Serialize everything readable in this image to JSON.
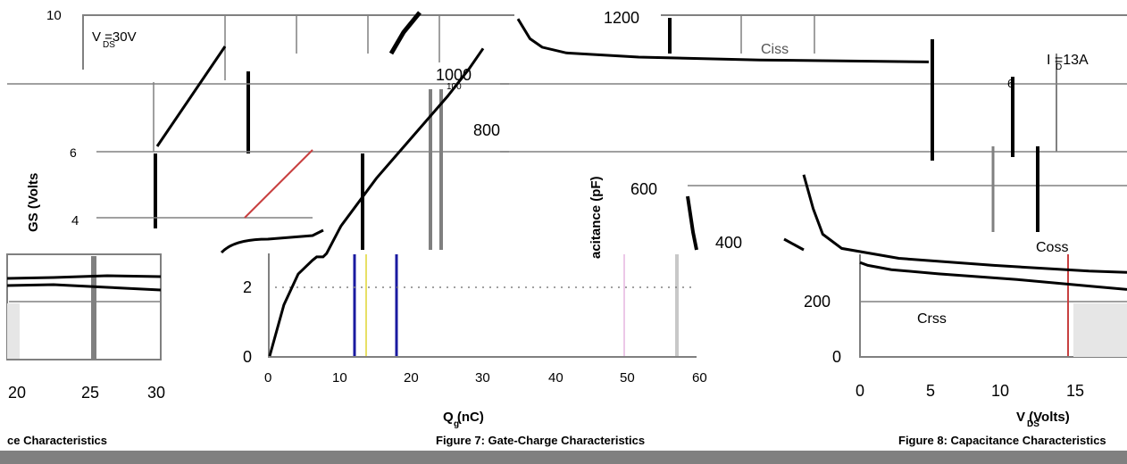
{
  "colors": {
    "axis": "#000000",
    "grid": "#808080",
    "curve": "#000000",
    "bar": "#808080"
  },
  "chart_data": [
    {
      "type": "line",
      "ylabel": "GS (Volts",
      "xlabel": "Q (nC)",
      "xlabel_subscript": "g",
      "x_ticks": [
        "0",
        "10",
        "20",
        "30",
        "40",
        "50",
        "60"
      ],
      "y_ticks": [
        "0",
        "2",
        "4",
        "6",
        "10"
      ],
      "xlim": [
        0,
        60
      ],
      "ylim": [
        0,
        10
      ],
      "annotation": "V =30V",
      "annotation_subscript": "DS",
      "caption": "Figure 7: Gate-Charge Characteristics",
      "series": [
        {
          "x": [
            0,
            2,
            4,
            6,
            6.6,
            7.5,
            8,
            10,
            15,
            20,
            25,
            28,
            30
          ],
          "y": [
            0,
            1.5,
            2.4,
            2.8,
            2.9,
            2.9,
            3.0,
            3.8,
            5.2,
            6.4,
            7.6,
            8.4,
            9.0
          ]
        }
      ]
    },
    {
      "type": "line",
      "ylabel": "acitance (pF)",
      "xlabel": "V (Volts)",
      "xlabel_subscript": "DS",
      "x_ticks": [
        "0",
        "5",
        "10",
        "15"
      ],
      "y_ticks": [
        "0",
        "200",
        "400",
        "600",
        "800",
        "1000",
        "1200"
      ],
      "xlim": [
        0,
        17
      ],
      "ylim": [
        0,
        1200
      ],
      "caption": "Figure 8: Capacitance Characteristics",
      "annotation": "I =13A",
      "annotation_subscript": "D",
      "series": [
        {
          "name": "Ciss",
          "x": [
            0,
            0.5,
            1,
            2,
            5,
            10,
            15,
            17
          ],
          "y": [
            1190,
            1120,
            1090,
            1070,
            1055,
            1045,
            1040,
            1038
          ]
        },
        {
          "name": "Coss",
          "x": [
            0,
            0.5,
            1,
            2,
            5,
            10,
            15,
            17
          ],
          "y": [
            640,
            520,
            430,
            380,
            345,
            320,
            300,
            295
          ]
        },
        {
          "name": "Crss",
          "x": [
            0,
            0.5,
            1,
            2,
            5,
            10,
            15,
            17
          ],
          "y": [
            330,
            320,
            315,
            305,
            290,
            270,
            245,
            235
          ]
        }
      ]
    },
    {
      "type": "line",
      "x_ticks": [
        "20",
        "25",
        "30"
      ],
      "caption": "ce Characteristics"
    }
  ],
  "extra_labels": {
    "tick_6": "6",
    "tick_2": "2",
    "tick_100": "100"
  }
}
